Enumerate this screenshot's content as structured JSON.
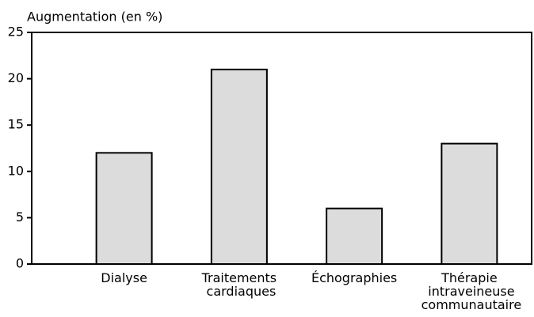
{
  "chart_data": {
    "type": "bar",
    "title": "Augmentation (en %)",
    "categories": [
      "Dialyse",
      "Traitements cardiaques",
      "Échographies",
      "Thérapie intraveineuse communautaire"
    ],
    "values": [
      12,
      21,
      6,
      13
    ],
    "color": "#dcdcdc",
    "ylim": [
      0,
      25
    ],
    "yticks": [
      0,
      5,
      10,
      15,
      20,
      25
    ]
  }
}
